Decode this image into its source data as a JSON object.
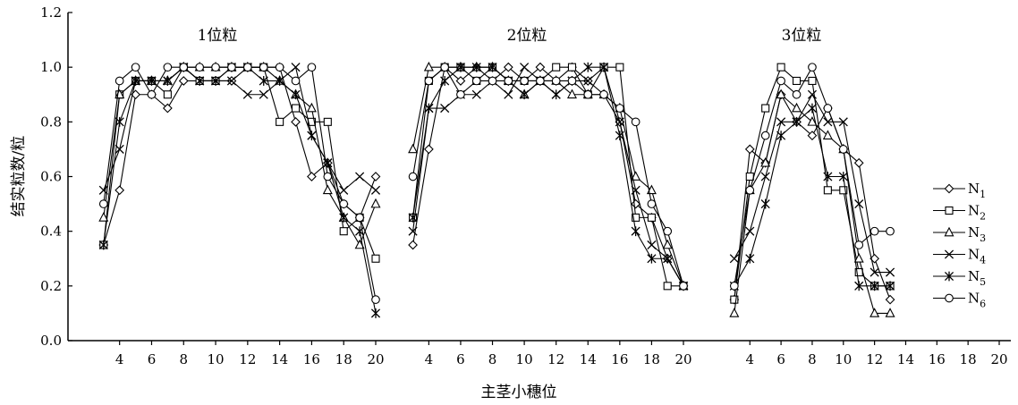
{
  "chart_data": {
    "type": "line",
    "xlabel": "主茎小穗位",
    "ylabel": "结实粒数/粒",
    "ylim": [
      0.0,
      1.2
    ],
    "yticks": [
      "0.0",
      "0.2",
      "0.4",
      "0.6",
      "0.8",
      "1.0",
      "1.2"
    ],
    "grid": false,
    "legend_position": "right",
    "legend": [
      {
        "base": "N",
        "sub": "1",
        "marker": "diamond"
      },
      {
        "base": "N",
        "sub": "2",
        "marker": "square"
      },
      {
        "base": "N",
        "sub": "3",
        "marker": "triangle"
      },
      {
        "base": "N",
        "sub": "4",
        "marker": "x"
      },
      {
        "base": "N",
        "sub": "5",
        "marker": "asterisk"
      },
      {
        "base": "N",
        "sub": "6",
        "marker": "circle"
      }
    ],
    "panels": [
      {
        "title": "1位粒",
        "xticks": [
          "4",
          "6",
          "8",
          "10",
          "12",
          "14",
          "16",
          "18",
          "20"
        ],
        "x": [
          3,
          4,
          5,
          6,
          7,
          8,
          9,
          10,
          11,
          12,
          13,
          14,
          15,
          16,
          17,
          18,
          19,
          20
        ],
        "series": [
          [
            0.35,
            0.55,
            0.9,
            0.9,
            0.85,
            0.95,
            0.95,
            0.95,
            0.95,
            1.0,
            1.0,
            1.0,
            0.8,
            0.6,
            0.65,
            0.5,
            0.45,
            0.6
          ],
          [
            0.35,
            0.9,
            0.95,
            0.95,
            0.9,
            1.0,
            0.95,
            0.95,
            1.0,
            1.0,
            1.0,
            0.8,
            0.85,
            0.8,
            0.8,
            0.4,
            0.45,
            0.3
          ],
          [
            0.45,
            0.9,
            0.95,
            0.95,
            0.95,
            1.0,
            1.0,
            1.0,
            1.0,
            1.0,
            1.0,
            0.95,
            0.9,
            0.85,
            0.55,
            0.45,
            0.35,
            0.5
          ],
          [
            0.55,
            0.7,
            0.95,
            0.95,
            0.95,
            1.0,
            0.95,
            0.95,
            0.95,
            0.9,
            0.9,
            0.95,
            1.0,
            0.75,
            0.65,
            0.55,
            0.6,
            0.55
          ],
          [
            0.35,
            0.8,
            0.95,
            0.95,
            0.95,
            1.0,
            0.95,
            0.95,
            1.0,
            1.0,
            0.95,
            0.95,
            0.9,
            0.75,
            0.65,
            0.45,
            0.4,
            0.1
          ],
          [
            0.5,
            0.95,
            1.0,
            0.9,
            1.0,
            1.0,
            1.0,
            1.0,
            1.0,
            1.0,
            1.0,
            1.0,
            0.95,
            1.0,
            0.6,
            0.5,
            0.45,
            0.15
          ]
        ]
      },
      {
        "title": "2位粒",
        "xticks": [
          "4",
          "6",
          "8",
          "10",
          "12",
          "14",
          "16",
          "18",
          "20"
        ],
        "x": [
          3,
          4,
          5,
          6,
          7,
          8,
          9,
          10,
          11,
          12,
          13,
          14,
          15,
          16,
          17,
          18,
          19,
          20
        ],
        "series": [
          [
            0.35,
            0.7,
            1.0,
            0.95,
            1.0,
            0.95,
            1.0,
            0.95,
            1.0,
            0.95,
            1.0,
            0.95,
            0.9,
            0.8,
            0.5,
            0.45,
            0.3,
            0.2
          ],
          [
            0.45,
            0.95,
            1.0,
            1.0,
            0.95,
            1.0,
            0.95,
            0.95,
            0.95,
            1.0,
            1.0,
            0.9,
            1.0,
            1.0,
            0.45,
            0.45,
            0.2,
            0.2
          ],
          [
            0.7,
            1.0,
            1.0,
            1.0,
            1.0,
            1.0,
            0.95,
            0.9,
            0.95,
            0.95,
            0.9,
            0.9,
            0.9,
            0.85,
            0.6,
            0.55,
            0.35,
            0.2
          ],
          [
            0.4,
            0.85,
            0.85,
            0.9,
            0.9,
            0.95,
            0.9,
            1.0,
            0.95,
            0.9,
            0.95,
            0.95,
            1.0,
            0.8,
            0.55,
            0.35,
            0.3,
            0.2
          ],
          [
            0.45,
            0.85,
            0.95,
            1.0,
            1.0,
            1.0,
            0.95,
            0.9,
            0.95,
            0.9,
            0.95,
            1.0,
            1.0,
            0.75,
            0.4,
            0.3,
            0.3,
            0.2
          ],
          [
            0.6,
            0.95,
            1.0,
            0.9,
            0.95,
            0.95,
            0.95,
            0.95,
            0.95,
            0.95,
            0.95,
            0.9,
            0.9,
            0.85,
            0.8,
            0.5,
            0.4,
            0.2
          ]
        ]
      },
      {
        "title": "3位粒",
        "xticks": [
          "4",
          "6",
          "8",
          "10",
          "12",
          "14",
          "16",
          "18",
          "20"
        ],
        "x": [
          3,
          4,
          5,
          6,
          7,
          8,
          9,
          10,
          11,
          12,
          13
        ],
        "series": [
          [
            0.15,
            0.7,
            0.65,
            0.9,
            0.8,
            0.75,
            0.85,
            0.7,
            0.65,
            0.3,
            0.15
          ],
          [
            0.15,
            0.6,
            0.85,
            1.0,
            0.95,
            0.95,
            0.55,
            0.55,
            0.25,
            0.2,
            0.2
          ],
          [
            0.1,
            0.55,
            0.65,
            0.9,
            0.85,
            0.8,
            0.75,
            0.7,
            0.3,
            0.1,
            0.1
          ],
          [
            0.3,
            0.4,
            0.6,
            0.8,
            0.8,
            0.9,
            0.8,
            0.8,
            0.5,
            0.25,
            0.25
          ],
          [
            0.2,
            0.3,
            0.5,
            0.75,
            0.8,
            0.85,
            0.6,
            0.6,
            0.2,
            0.2,
            0.2
          ],
          [
            0.2,
            0.55,
            0.75,
            0.95,
            0.9,
            1.0,
            0.85,
            0.7,
            0.35,
            0.4,
            0.4
          ]
        ]
      }
    ]
  }
}
